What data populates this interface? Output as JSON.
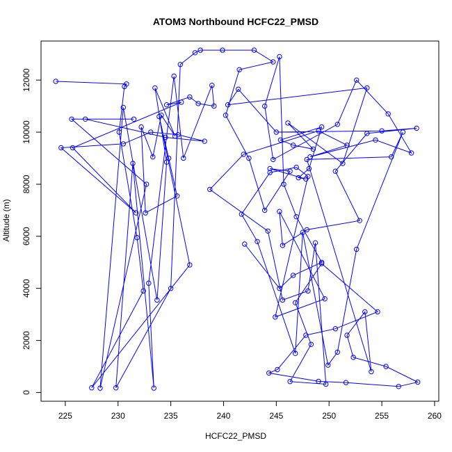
{
  "chart_data": {
    "type": "line",
    "title": "ATOM3 Northbound HCFC22_PMSD",
    "xlabel": "HCFC22_PMSD",
    "ylabel": "Altitude (m)",
    "xlim": [
      222.7,
      260.4
    ],
    "ylim": [
      -335,
      13500
    ],
    "xticks": [
      225,
      230,
      235,
      240,
      245,
      250,
      255,
      260
    ],
    "yticks": [
      0,
      2000,
      4000,
      6000,
      8000,
      10000,
      12000
    ],
    "grid": false,
    "legend": "none",
    "color": "#0000ff",
    "series": [
      {
        "points": [
          [
            224.1,
            11950
          ],
          [
            230.8,
            11850
          ],
          [
            230.6,
            11750
          ],
          [
            230.1,
            10000
          ],
          [
            231.8,
            5950
          ],
          [
            232.4,
            3900
          ],
          [
            227.5,
            180
          ],
          [
            236.8,
            4900
          ],
          [
            233.9,
            10600
          ],
          [
            234.8,
            9000
          ],
          [
            235.6,
            7550
          ],
          [
            232.6,
            6900
          ],
          [
            232.2,
            10200
          ],
          [
            233.3,
            9050
          ],
          [
            234.1,
            10650
          ],
          [
            235.4,
            9850
          ],
          [
            233.5,
            11700
          ],
          [
            234.6,
            8850
          ],
          [
            233.7,
            3550
          ],
          [
            230.5,
            10950
          ],
          [
            228.3,
            170
          ],
          [
            232.7,
            8000
          ],
          [
            225.6,
            10500
          ],
          [
            231.5,
            10500
          ],
          [
            226.9,
            10500
          ],
          [
            234.5,
            9800
          ],
          [
            238.2,
            9650
          ],
          [
            235.7,
            9900
          ],
          [
            233.1,
            10000
          ],
          [
            230.5,
            9550
          ],
          [
            224.6,
            9400
          ],
          [
            231.7,
            6900
          ],
          [
            225.7,
            9400
          ],
          [
            236.0,
            11150
          ],
          [
            234.6,
            11050
          ],
          [
            236.8,
            11350
          ],
          [
            237.6,
            11100
          ],
          [
            239.1,
            11000
          ],
          [
            238.9,
            11800
          ],
          [
            236.2,
            9000
          ],
          [
            235.3,
            12150
          ],
          [
            232.9,
            4200
          ],
          [
            233.4,
            170
          ],
          [
            231.4,
            8800
          ],
          [
            229.8,
            180
          ],
          [
            235.0,
            4000
          ],
          [
            235.9,
            12600
          ],
          [
            237.3,
            13050
          ],
          [
            237.8,
            13150
          ],
          [
            239.9,
            13150
          ],
          [
            242.9,
            13150
          ],
          [
            244.7,
            12700
          ],
          [
            241.5,
            12400
          ],
          [
            240.2,
            10650
          ],
          [
            242.4,
            9000
          ],
          [
            243.9,
            7000
          ],
          [
            246.3,
            8500
          ],
          [
            244.4,
            8600
          ],
          [
            247.8,
            8200
          ],
          [
            247.1,
            8250
          ],
          [
            248.1,
            8600
          ],
          [
            249.3,
            10200
          ],
          [
            245.4,
            9700
          ],
          [
            246.6,
            9500
          ],
          [
            248.5,
            9350
          ],
          [
            246.1,
            10350
          ],
          [
            251.3,
            8800
          ],
          [
            253.6,
            11700
          ],
          [
            240.4,
            11050
          ],
          [
            241.4,
            11650
          ],
          [
            245.0,
            10000
          ],
          [
            255.0,
            10050
          ],
          [
            258.3,
            10150
          ],
          [
            253.6,
            9950
          ],
          [
            250.6,
            8500
          ],
          [
            252.9,
            6600
          ],
          [
            247.9,
            6250
          ],
          [
            245.6,
            5650
          ],
          [
            245.3,
            6950
          ],
          [
            249.6,
            3600
          ],
          [
            244.9,
            2900
          ],
          [
            248.0,
            8300
          ],
          [
            246.9,
            8650
          ],
          [
            244.4,
            8450
          ],
          [
            241.7,
            6850
          ],
          [
            243.2,
            5800
          ],
          [
            246.8,
            1500
          ],
          [
            247.5,
            6150
          ],
          [
            249.9,
            1050
          ],
          [
            250.8,
            1550
          ],
          [
            252.6,
            5500
          ],
          [
            257.0,
            10000
          ],
          [
            255.9,
            9050
          ],
          [
            247.9,
            8950
          ],
          [
            254.0,
            800
          ],
          [
            253.4,
            3100
          ],
          [
            251.7,
            2200
          ],
          [
            252.3,
            1350
          ],
          [
            255.4,
            1000
          ],
          [
            258.4,
            400
          ],
          [
            256.6,
            230
          ],
          [
            251.6,
            380
          ],
          [
            249.0,
            430
          ],
          [
            244.3,
            750
          ],
          [
            245.1,
            880
          ],
          [
            247.8,
            2200
          ],
          [
            250.6,
            2450
          ],
          [
            254.6,
            3100
          ],
          [
            249.3,
            4950
          ],
          [
            246.8,
            3450
          ],
          [
            248.3,
            1850
          ],
          [
            246.3,
            420
          ],
          [
            249.7,
            320
          ],
          [
            248.7,
            5750
          ],
          [
            248.0,
            3900
          ],
          [
            245.6,
            3550
          ],
          [
            244.2,
            6200
          ],
          [
            238.7,
            7800
          ],
          [
            241.9,
            9150
          ],
          [
            249.0,
            10050
          ],
          [
            251.7,
            9500
          ],
          [
            248.2,
            9050
          ],
          [
            254.4,
            9700
          ],
          [
            257.8,
            9200
          ],
          [
            255.6,
            10700
          ],
          [
            252.6,
            12000
          ],
          [
            250.8,
            10300
          ],
          [
            244.7,
            8950
          ],
          [
            243.9,
            11000
          ],
          [
            245.3,
            12900
          ],
          [
            245.7,
            8000
          ],
          [
            246.9,
            6750
          ],
          [
            249.3,
            5000
          ],
          [
            246.6,
            4500
          ],
          [
            245.3,
            4000
          ],
          [
            242.0,
            5700
          ]
        ]
      }
    ]
  }
}
